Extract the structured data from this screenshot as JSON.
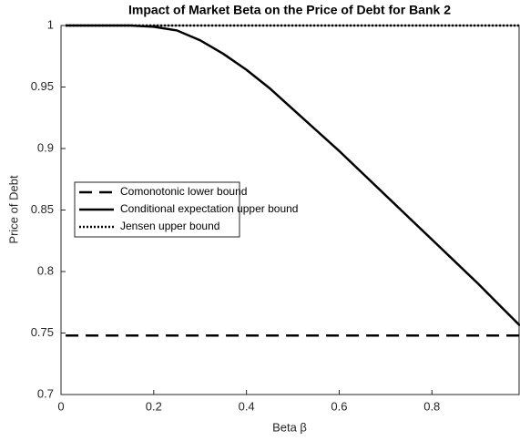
{
  "chart_data": {
    "type": "line",
    "title": "Impact of Market Beta on the Price of Debt for Bank 2",
    "xlabel": "Beta β",
    "ylabel": "Price of Debt",
    "x": [
      0.01,
      0.05,
      0.1,
      0.15,
      0.2,
      0.25,
      0.3,
      0.35,
      0.4,
      0.45,
      0.5,
      0.55,
      0.6,
      0.65,
      0.7,
      0.75,
      0.8,
      0.85,
      0.9,
      0.95,
      0.99
    ],
    "series": [
      {
        "name": "Comonotonic lower bound",
        "color": "#000000",
        "style": "dashed",
        "values": [
          0.748,
          0.748,
          0.748,
          0.748,
          0.748,
          0.748,
          0.748,
          0.748,
          0.748,
          0.748,
          0.748,
          0.748,
          0.748,
          0.748,
          0.748,
          0.748,
          0.748,
          0.748,
          0.748,
          0.748,
          0.748
        ]
      },
      {
        "name": "Conditional expectation upper bound",
        "color": "#000000",
        "style": "solid",
        "values": [
          1.0,
          1.0,
          1.0,
          1.0,
          0.999,
          0.996,
          0.988,
          0.977,
          0.964,
          0.949,
          0.932,
          0.915,
          0.898,
          0.88,
          0.862,
          0.844,
          0.826,
          0.808,
          0.79,
          0.771,
          0.756
        ]
      },
      {
        "name": "Jensen upper bound",
        "color": "#000000",
        "style": "dotted",
        "values": [
          1.0,
          1.0,
          1.0,
          1.0,
          1.0,
          1.0,
          1.0,
          1.0,
          1.0,
          1.0,
          1.0,
          1.0,
          1.0,
          1.0,
          1.0,
          1.0,
          1.0,
          1.0,
          1.0,
          1.0,
          1.0
        ]
      }
    ],
    "xlim": [
      0,
      0.99
    ],
    "xticks": [
      0,
      0.2,
      0.4,
      0.6,
      0.8
    ],
    "ylim": [
      0.7,
      1
    ],
    "yticks": [
      0.7,
      0.75,
      0.8,
      0.85,
      0.9,
      0.95,
      1
    ],
    "grid": false,
    "legend": "west"
  }
}
